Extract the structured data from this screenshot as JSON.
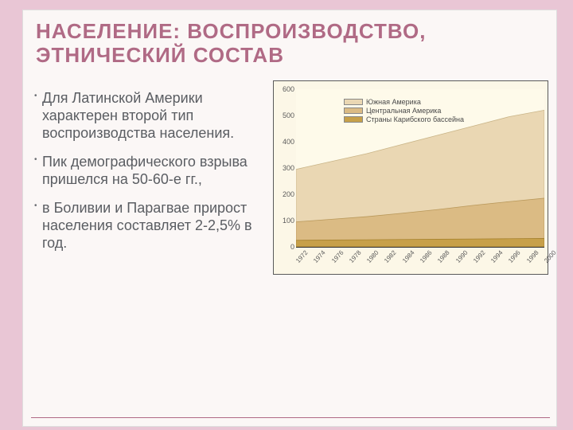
{
  "background_color": "#e9c6d5",
  "card_background": "#fbf7f6",
  "accent_color": "#b06a85",
  "title": "НАСЕЛЕНИЕ: ВОСПРОИЗВОДСТВО, ЭТНИЧЕСКИЙ СОСТАВ",
  "bullets": [
    "Для Латинской Америки характерен второй тип воспроизводства населения.",
    "Пик  демографического взрыва пришелся на 50-60-е гг.,",
    "в Боливии и Парагвае прирост населения составляет 2-2,5% в год."
  ],
  "chart": {
    "type": "area",
    "plot_background": "#fefaea",
    "chart_background": "#fcf7e7",
    "grid_color": "#b9b9b9",
    "axis_color": "#333333",
    "ylim": [
      0,
      600
    ],
    "ytick_step": 100,
    "yticks": [
      "0",
      "100",
      "200",
      "300",
      "400",
      "500",
      "600"
    ],
    "xlim": [
      1972,
      2000
    ],
    "xtick_step": 2,
    "xticks": [
      "1972",
      "1974",
      "1976",
      "1978",
      "1980",
      "1982",
      "1984",
      "1986",
      "1988",
      "1990",
      "1992",
      "1994",
      "1996",
      "1998",
      "2000"
    ],
    "xlabel_rotation_deg": -48,
    "series": [
      {
        "name": "Южная Америка",
        "color": "#ead7b3"
      },
      {
        "name": "Центральная Америка",
        "color": "#dbbb84"
      },
      {
        "name": "Страны Карибского бассейна",
        "color": "#c7a049"
      }
    ],
    "x": [
      1972,
      1976,
      1980,
      1984,
      1988,
      1992,
      1996,
      2000
    ],
    "cumulative": {
      "carib": [
        25,
        26,
        27,
        28,
        29,
        30,
        31,
        32
      ],
      "central": [
        95,
        105,
        115,
        128,
        142,
        158,
        172,
        185
      ],
      "total": [
        295,
        325,
        355,
        390,
        425,
        460,
        495,
        520
      ]
    },
    "label_fontsize": 9,
    "tick_fontsize": 9
  }
}
